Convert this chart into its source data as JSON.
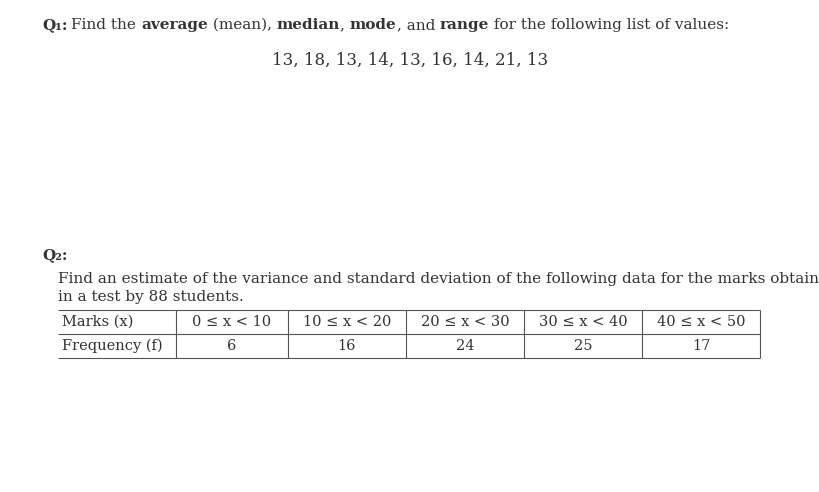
{
  "bg_color": "#ffffff",
  "text_color": "#333333",
  "q1_label": "Q₁:",
  "q1_pieces": [
    [
      "Find the ",
      false
    ],
    [
      "average",
      true
    ],
    [
      " (mean), ",
      false
    ],
    [
      "median",
      true
    ],
    [
      ", ",
      false
    ],
    [
      "mode",
      true
    ],
    [
      ", and ",
      false
    ],
    [
      "range",
      true
    ],
    [
      " for the following list of values:",
      false
    ]
  ],
  "q1_values": "13, 18, 13, 14, 13, 16, 14, 21, 13",
  "q2_label": "Q₂:",
  "q2_line1": "Find an estimate of the variance and standard deviation of the following data for the marks obtained",
  "q2_line2": "in a test by 88 students.",
  "table_marks_label": "Marks (ᴺ)",
  "table_freq_label": "Frequency (ᶣ)",
  "table_cols": [
    "0 ≤ x < 10",
    "10 ≤ x < 20",
    "20 ≤ x < 30",
    "30 ≤ x < 40",
    "40 ≤ x < 50"
  ],
  "table_freqs": [
    "6",
    "16",
    "24",
    "25",
    "17"
  ],
  "fs_q1": 11.0,
  "fs_values": 12.0,
  "fs_q2_label": 11.0,
  "fs_q2_text": 11.0,
  "fs_table": 10.5
}
